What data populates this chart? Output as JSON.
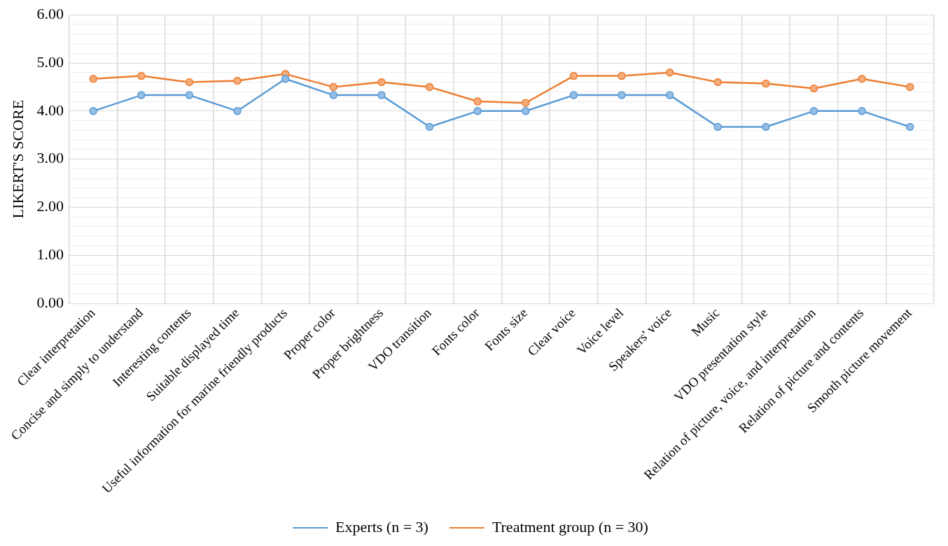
{
  "chart_data": {
    "type": "line",
    "ylabel": "LIKERT'S SCORE",
    "categories": [
      "Clear interpretation",
      "Concise and simply to understand",
      "Interesting contents",
      "Suitable displayed time",
      "Useful information for marine friendly products",
      "Proper color",
      "Proper brightness",
      "VDO transition",
      "Fonts color",
      "Fonts size",
      "Clear voice",
      "Voice level",
      "Speakers' voice",
      "Music",
      "VDO presentation style",
      "Relation of picture, voice, and interpretation",
      "Relation of picture and contents",
      "Smooth picture movement"
    ],
    "series": [
      {
        "name": "Experts (n = 3)",
        "color": "#5b9bd5",
        "values": [
          4.0,
          4.33,
          4.33,
          4.0,
          4.67,
          4.33,
          4.33,
          3.67,
          4.0,
          4.0,
          4.33,
          4.33,
          4.33,
          3.67,
          3.67,
          4.0,
          4.0,
          3.67
        ]
      },
      {
        "name": "Treatment group (n = 30)",
        "color": "#ed7d31",
        "values": [
          4.67,
          4.73,
          4.6,
          4.63,
          4.77,
          4.5,
          4.6,
          4.5,
          4.2,
          4.17,
          4.73,
          4.73,
          4.8,
          4.6,
          4.57,
          4.47,
          4.67,
          4.5
        ]
      }
    ],
    "ylim": [
      0,
      6
    ],
    "yticks": [
      {
        "value": 0,
        "label": "0.00"
      },
      {
        "value": 0.2,
        "label": null
      },
      {
        "value": 0.4,
        "label": null
      },
      {
        "value": 0.6,
        "label": null
      },
      {
        "value": 0.8,
        "label": null
      },
      {
        "value": 1,
        "label": "1.00"
      },
      {
        "value": 1.2,
        "label": null
      },
      {
        "value": 1.4,
        "label": null
      },
      {
        "value": 1.6,
        "label": null
      },
      {
        "value": 1.8,
        "label": null
      },
      {
        "value": 2,
        "label": "2.00"
      },
      {
        "value": 2.2,
        "label": null
      },
      {
        "value": 2.4,
        "label": null
      },
      {
        "value": 2.6,
        "label": null
      },
      {
        "value": 2.8,
        "label": null
      },
      {
        "value": 3,
        "label": "3.00"
      },
      {
        "value": 3.2,
        "label": null
      },
      {
        "value": 3.4,
        "label": null
      },
      {
        "value": 3.6,
        "label": null
      },
      {
        "value": 3.8,
        "label": null
      },
      {
        "value": 4,
        "label": "4.00"
      },
      {
        "value": 4.2,
        "label": null
      },
      {
        "value": 4.4,
        "label": null
      },
      {
        "value": 4.6,
        "label": null
      },
      {
        "value": 4.8,
        "label": null
      },
      {
        "value": 5,
        "label": "5.00"
      },
      {
        "value": 5.2,
        "label": null
      },
      {
        "value": 5.4,
        "label": null
      },
      {
        "value": 5.6,
        "label": null
      },
      {
        "value": 5.8,
        "label": null
      },
      {
        "value": 6,
        "label": "6.00"
      }
    ],
    "grid": true,
    "legend": "bottom",
    "marker": "circle",
    "line_style": "solid"
  }
}
